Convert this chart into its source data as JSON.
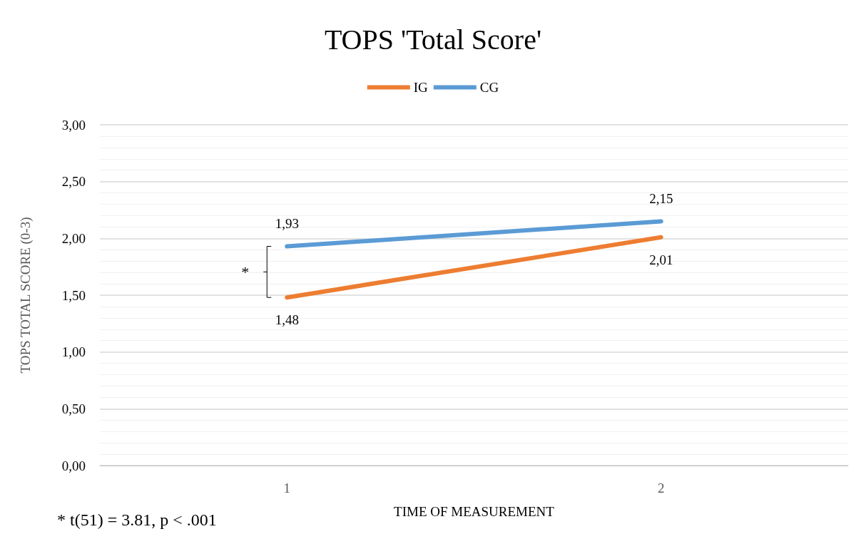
{
  "chart_data": {
    "type": "line",
    "title": "TOPS 'Total Score'",
    "xlabel": "TIME OF MEASUREMENT",
    "ylabel": "TOPS TOTAL SCORE (0-3)",
    "categories": [
      "1",
      "2"
    ],
    "series": [
      {
        "name": "IG",
        "color": "#ed7d31",
        "values": [
          1.48,
          2.01
        ],
        "value_labels": [
          "1,48",
          "2,01"
        ]
      },
      {
        "name": "CG",
        "color": "#5b9bd5",
        "values": [
          1.93,
          2.15
        ],
        "value_labels": [
          "1,93",
          "2,15"
        ]
      }
    ],
    "ylim": [
      0,
      3
    ],
    "yticks": [
      {
        "value": 0,
        "label": "0,00"
      },
      {
        "value": 0.5,
        "label": "0,50"
      },
      {
        "value": 1,
        "label": "1,00"
      },
      {
        "value": 1.5,
        "label": "1,50"
      },
      {
        "value": 2,
        "label": "2,00"
      },
      {
        "value": 2.5,
        "label": "2,50"
      },
      {
        "value": 3,
        "label": "3,00"
      }
    ],
    "grid": "y",
    "legend": "top",
    "marker": "none",
    "line_style": "solid",
    "annotations": [
      "*",
      "* t(51) = 3.81, p < .001"
    ]
  }
}
